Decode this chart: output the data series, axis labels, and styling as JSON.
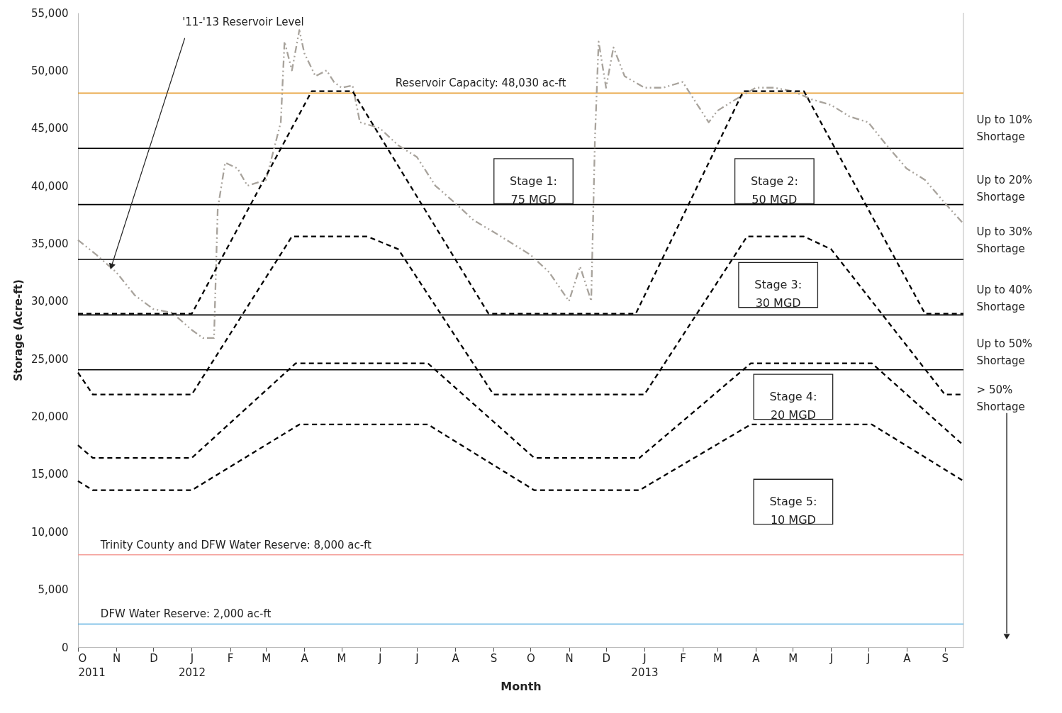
{
  "chart_data": {
    "type": "line",
    "xlabel": "Month",
    "ylabel": "Storage (Acre-ft)",
    "xlim": [
      "2011-10-01",
      "2013-09-16"
    ],
    "ylim": [
      0,
      55000
    ],
    "xticks": [
      {
        "value": "2011-10-01",
        "label": "O\n2011"
      },
      {
        "value": "2011-11-01",
        "label": "N"
      },
      {
        "value": "2011-12-01",
        "label": "D"
      },
      {
        "value": "2012-01-01",
        "label": "J\n2012"
      },
      {
        "value": "2012-02-01",
        "label": "F"
      },
      {
        "value": "2012-03-01",
        "label": "M"
      },
      {
        "value": "2012-04-01",
        "label": "A"
      },
      {
        "value": "2012-05-01",
        "label": "M"
      },
      {
        "value": "2012-06-01",
        "label": "J"
      },
      {
        "value": "2012-07-01",
        "label": "J"
      },
      {
        "value": "2012-08-01",
        "label": "A"
      },
      {
        "value": "2012-09-01",
        "label": "S"
      },
      {
        "value": "2012-10-01",
        "label": "O"
      },
      {
        "value": "2012-11-01",
        "label": "N"
      },
      {
        "value": "2012-12-01",
        "label": "D"
      },
      {
        "value": "2013-01-01",
        "label": "J\n2013"
      },
      {
        "value": "2013-02-01",
        "label": "F"
      },
      {
        "value": "2013-03-01",
        "label": "M"
      },
      {
        "value": "2013-04-01",
        "label": "A"
      },
      {
        "value": "2013-05-01",
        "label": "M"
      },
      {
        "value": "2013-06-01",
        "label": "J"
      },
      {
        "value": "2013-07-01",
        "label": "J"
      },
      {
        "value": "2013-08-01",
        "label": "A"
      },
      {
        "value": "2013-09-01",
        "label": "S"
      }
    ],
    "yticks": [
      {
        "value": 0,
        "label": "0"
      },
      {
        "value": 5000,
        "label": "5,000"
      },
      {
        "value": 10000,
        "label": "10,000"
      },
      {
        "value": 15000,
        "label": "15,000"
      },
      {
        "value": 20000,
        "label": "20,000"
      },
      {
        "value": 25000,
        "label": "25,000"
      },
      {
        "value": 30000,
        "label": "30,000"
      },
      {
        "value": 35000,
        "label": "35,000"
      },
      {
        "value": 40000,
        "label": "40,000"
      },
      {
        "value": 45000,
        "label": "45,000"
      },
      {
        "value": 50000,
        "label": "50,000"
      },
      {
        "value": 55000,
        "label": "55,000"
      }
    ],
    "grid": false,
    "marker": "none",
    "series": [
      {
        "color": "#a8a39c",
        "line_style": "dotted",
        "x": [
          "2011-10-01",
          "2011-10-16",
          "2011-11-01",
          "2011-11-16",
          "2011-12-01",
          "2011-12-16",
          "2012-01-01",
          "2012-01-10",
          "2012-01-19",
          "2012-01-22",
          "2012-01-28",
          "2012-02-07",
          "2012-02-15",
          "2012-03-01",
          "2012-03-07",
          "2012-03-13",
          "2012-03-16",
          "2012-03-22",
          "2012-03-28",
          "2012-04-01",
          "2012-04-10",
          "2012-04-19",
          "2012-04-25",
          "2012-05-01",
          "2012-05-10",
          "2012-05-16",
          "2012-06-01",
          "2012-06-16",
          "2012-07-01",
          "2012-07-16",
          "2012-08-01",
          "2012-08-16",
          "2012-09-01",
          "2012-10-01",
          "2012-10-16",
          "2012-11-01",
          "2012-11-10",
          "2012-11-19",
          "2012-11-22",
          "2012-11-25",
          "2012-12-01",
          "2012-12-07",
          "2012-12-16",
          "2013-01-01",
          "2013-01-16",
          "2013-02-01",
          "2013-02-10",
          "2013-02-22",
          "2013-03-01",
          "2013-03-16",
          "2013-04-01",
          "2013-04-16",
          "2013-05-01",
          "2013-05-16",
          "2013-06-01",
          "2013-06-16",
          "2013-07-01",
          "2013-07-16",
          "2013-08-01",
          "2013-08-16",
          "2013-09-01",
          "2013-09-16"
        ],
        "values": [
          35300,
          34000,
          32500,
          30500,
          29300,
          29000,
          27500,
          26800,
          26800,
          38000,
          42000,
          41500,
          40000,
          40500,
          43000,
          45500,
          52500,
          50000,
          53500,
          51500,
          49500,
          50000,
          49000,
          48500,
          48700,
          45500,
          45000,
          43500,
          42500,
          40000,
          38500,
          37000,
          36000,
          34000,
          32500,
          30000,
          33000,
          30000,
          44000,
          52500,
          48500,
          52000,
          49500,
          48500,
          48500,
          49000,
          47500,
          45500,
          46500,
          47500,
          48500,
          48500,
          48200,
          47500,
          47000,
          46000,
          45500,
          43500,
          41500,
          40500,
          38500,
          36700
        ]
      },
      {
        "color": "#000000",
        "line_style": "dashed",
        "x": [
          "2011-10-01",
          "2012-01-01",
          "2012-04-07",
          "2012-05-10",
          "2012-08-28",
          "2012-12-25",
          "2013-03-22",
          "2013-05-10",
          "2013-08-16",
          "2013-09-16"
        ],
        "values": [
          28900,
          28900,
          48200,
          48200,
          28900,
          28900,
          48200,
          48200,
          28900,
          28900
        ]
      },
      {
        "color": "#000000",
        "line_style": "dashed",
        "x": [
          "2011-10-01",
          "2011-10-13",
          "2012-01-01",
          "2012-03-22",
          "2012-05-22",
          "2012-06-16",
          "2012-09-01",
          "2013-01-01",
          "2013-03-25",
          "2013-05-10",
          "2013-06-01",
          "2013-09-01",
          "2013-09-16"
        ],
        "values": [
          23800,
          21900,
          21900,
          35600,
          35600,
          34500,
          21900,
          21900,
          35600,
          35600,
          34500,
          21900,
          21900
        ]
      },
      {
        "color": "#000000",
        "line_style": "dashed",
        "x": [
          "2011-10-01",
          "2011-10-13",
          "2012-01-01",
          "2012-03-25",
          "2012-07-10",
          "2012-10-04",
          "2012-12-28",
          "2013-03-28",
          "2013-07-04",
          "2013-09-16"
        ],
        "values": [
          17500,
          16400,
          16400,
          24600,
          24600,
          16400,
          16400,
          24600,
          24600,
          17500
        ]
      },
      {
        "color": "#000000",
        "line_style": "dashed",
        "x": [
          "2011-10-01",
          "2011-10-13",
          "2012-01-01",
          "2012-03-28",
          "2012-07-10",
          "2012-10-04",
          "2012-12-28",
          "2013-03-28",
          "2013-07-04",
          "2013-09-16"
        ],
        "values": [
          14400,
          13600,
          13600,
          19300,
          19300,
          13600,
          13600,
          19300,
          19300,
          14400
        ]
      }
    ],
    "ref_lines": [
      {
        "axis": "y",
        "value": 48030,
        "label": "Reservoir Capacity: 48,030 ac-ft",
        "color": "#e8a33d"
      },
      {
        "axis": "y",
        "value": 43250,
        "color": "#000000"
      },
      {
        "axis": "y",
        "value": 38370,
        "color": "#000000"
      },
      {
        "axis": "y",
        "value": 33610,
        "color": "#000000"
      },
      {
        "axis": "y",
        "value": 28800,
        "color": "#000000"
      },
      {
        "axis": "y",
        "value": 24040,
        "color": "#000000"
      },
      {
        "axis": "y",
        "value": 8000,
        "label": "Trinity County and DFW Water Reserve: 8,000 ac-ft",
        "color": "#f4a09a"
      },
      {
        "axis": "y",
        "value": 2000,
        "label": "DFW Water Reserve: 2,000 ac-ft",
        "color": "#5aaee0"
      }
    ],
    "annotations": [
      {
        "text": "'11-'13 Reservoir Level",
        "x": "2011-10-28",
        "y": 33000
      },
      "Stage 1: 75 MGD",
      "Stage 2: 50 MGD",
      "Stage 3: 30 MGD",
      "Stage 4: 20 MGD",
      "Stage 5: 10 MGD",
      "Up to 10% Shortage",
      "Up to 20% Shortage",
      "Up to 30% Shortage",
      "Up to 40% Shortage",
      "Up to 50% Shortage",
      "> 50% Shortage"
    ]
  }
}
